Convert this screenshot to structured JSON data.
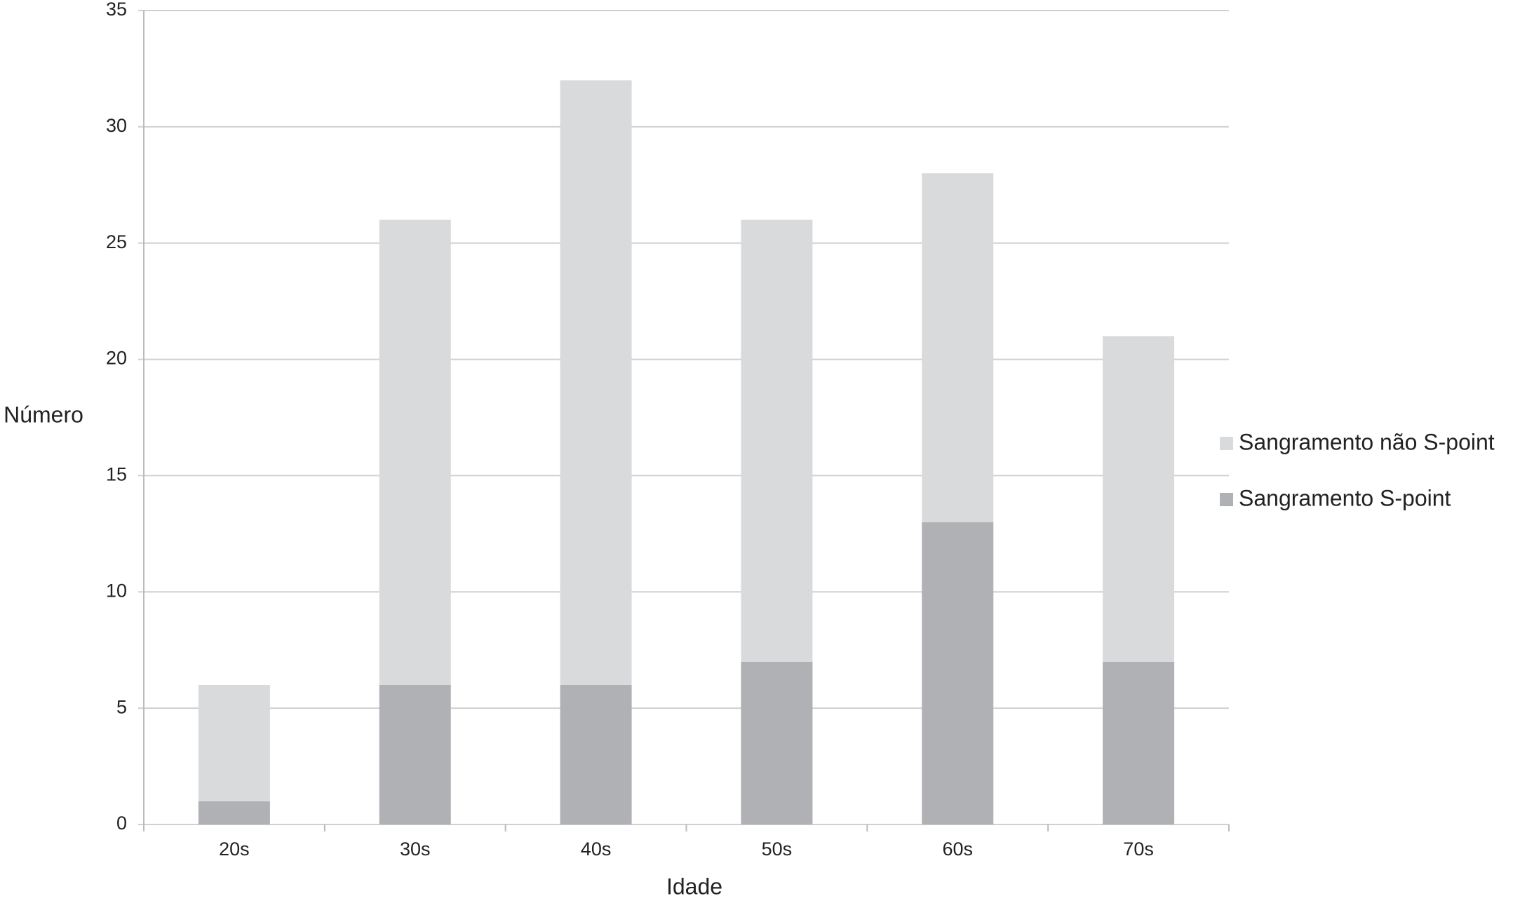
{
  "chart_data": {
    "type": "stacked_bar",
    "x_label": "Idade",
    "y_label": "Número",
    "categories": [
      "20s",
      "30s",
      "40s",
      "50s",
      "60s",
      "70s"
    ],
    "series": [
      {
        "name": "Sangramento S-point",
        "color": "#b0b1b4",
        "values": [
          1,
          6,
          6,
          7,
          13,
          7
        ]
      },
      {
        "name": "Sangramento não S-point",
        "color": "#d9dadc",
        "values": [
          5,
          20,
          26,
          19,
          15,
          14
        ]
      }
    ],
    "ylim": [
      0,
      35
    ],
    "yticks": [
      0,
      5,
      10,
      15,
      20,
      25,
      30,
      35
    ],
    "grid": true,
    "legend": "right"
  }
}
